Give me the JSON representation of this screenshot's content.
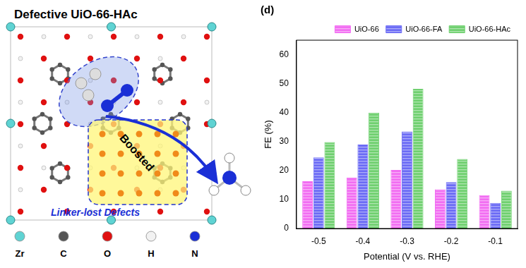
{
  "diagram": {
    "title": "Defective UiO-66-HAc",
    "annotations": [
      "Boosted",
      "Linker-lost Defects"
    ],
    "legend": [
      {
        "label": "Zr",
        "color": "#5fd3d3"
      },
      {
        "label": "C",
        "color": "#555555"
      },
      {
        "label": "O",
        "color": "#e01010"
      },
      {
        "label": "H",
        "color": "#f2f2f2"
      },
      {
        "label": "N",
        "color": "#1a2fd6"
      }
    ]
  },
  "chart_data": {
    "type": "bar",
    "title": "(d)",
    "x_label": "Potential (V vs. RHE)",
    "y_label": "FE (%)",
    "categories": [
      "-0.5",
      "-0.4",
      "-0.3",
      "-0.2",
      "-0.1"
    ],
    "series": [
      {
        "name": "UiO-66",
        "color": "#f26df2",
        "values": [
          16.3,
          17.5,
          20.2,
          13.5,
          11.5
        ]
      },
      {
        "name": "UiO-66-FA",
        "color": "#6b6bf5",
        "values": [
          24.5,
          29,
          33.5,
          16,
          8.8
        ]
      },
      {
        "name": "UiO-66-HAc",
        "color": "#6fd06f",
        "values": [
          29.8,
          40,
          48.2,
          24,
          13
        ]
      }
    ],
    "ylim": [
      0,
      65
    ],
    "yticks": [
      0,
      10,
      20,
      30,
      40,
      50,
      60
    ],
    "grid": false,
    "legend": "top-right"
  }
}
